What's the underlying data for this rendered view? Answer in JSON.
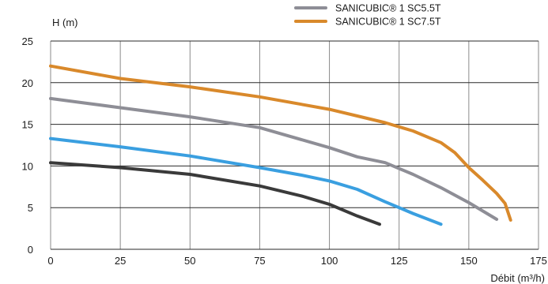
{
  "chart_data": {
    "type": "line",
    "xlabel": "Débit (m³/h)",
    "ylabel": "H (m)",
    "xlim": [
      0,
      175
    ],
    "ylim": [
      0,
      25
    ],
    "x_ticks": [
      "0",
      "25",
      "50",
      "75",
      "100",
      "125",
      "150",
      "175"
    ],
    "y_ticks": [
      "0",
      "5",
      "10",
      "15",
      "20",
      "25"
    ],
    "grid": true,
    "legend_position": "top-right",
    "series": [
      {
        "name": "",
        "color": "#3a3a3a",
        "points": [
          [
            0,
            10.4
          ],
          [
            25,
            9.8
          ],
          [
            50,
            9.0
          ],
          [
            75,
            7.6
          ],
          [
            90,
            6.4
          ],
          [
            100,
            5.4
          ],
          [
            110,
            4.0
          ],
          [
            118,
            3.0
          ]
        ]
      },
      {
        "name": "",
        "color": "#3a9fe0",
        "points": [
          [
            0,
            13.3
          ],
          [
            25,
            12.3
          ],
          [
            50,
            11.2
          ],
          [
            75,
            9.8
          ],
          [
            90,
            8.9
          ],
          [
            100,
            8.2
          ],
          [
            110,
            7.2
          ],
          [
            120,
            5.7
          ],
          [
            130,
            4.3
          ],
          [
            140,
            3.0
          ]
        ]
      },
      {
        "name": "SANICUBIC® 1 SC5.5T",
        "color": "#8e8e96",
        "points": [
          [
            0,
            18.1
          ],
          [
            25,
            17.0
          ],
          [
            50,
            15.9
          ],
          [
            75,
            14.6
          ],
          [
            100,
            12.2
          ],
          [
            110,
            11.1
          ],
          [
            120,
            10.4
          ],
          [
            130,
            9.0
          ],
          [
            140,
            7.4
          ],
          [
            150,
            5.6
          ],
          [
            160,
            3.6
          ]
        ]
      },
      {
        "name": "SANICUBIC® 1 SC7.5T",
        "color": "#d9892b",
        "points": [
          [
            0,
            22.0
          ],
          [
            25,
            20.5
          ],
          [
            50,
            19.5
          ],
          [
            75,
            18.3
          ],
          [
            100,
            16.8
          ],
          [
            110,
            16.0
          ],
          [
            120,
            15.2
          ],
          [
            130,
            14.2
          ],
          [
            140,
            12.8
          ],
          [
            145,
            11.6
          ],
          [
            150,
            9.8
          ],
          [
            155,
            8.3
          ],
          [
            160,
            6.7
          ],
          [
            163,
            5.5
          ],
          [
            165,
            3.5
          ]
        ]
      }
    ]
  }
}
